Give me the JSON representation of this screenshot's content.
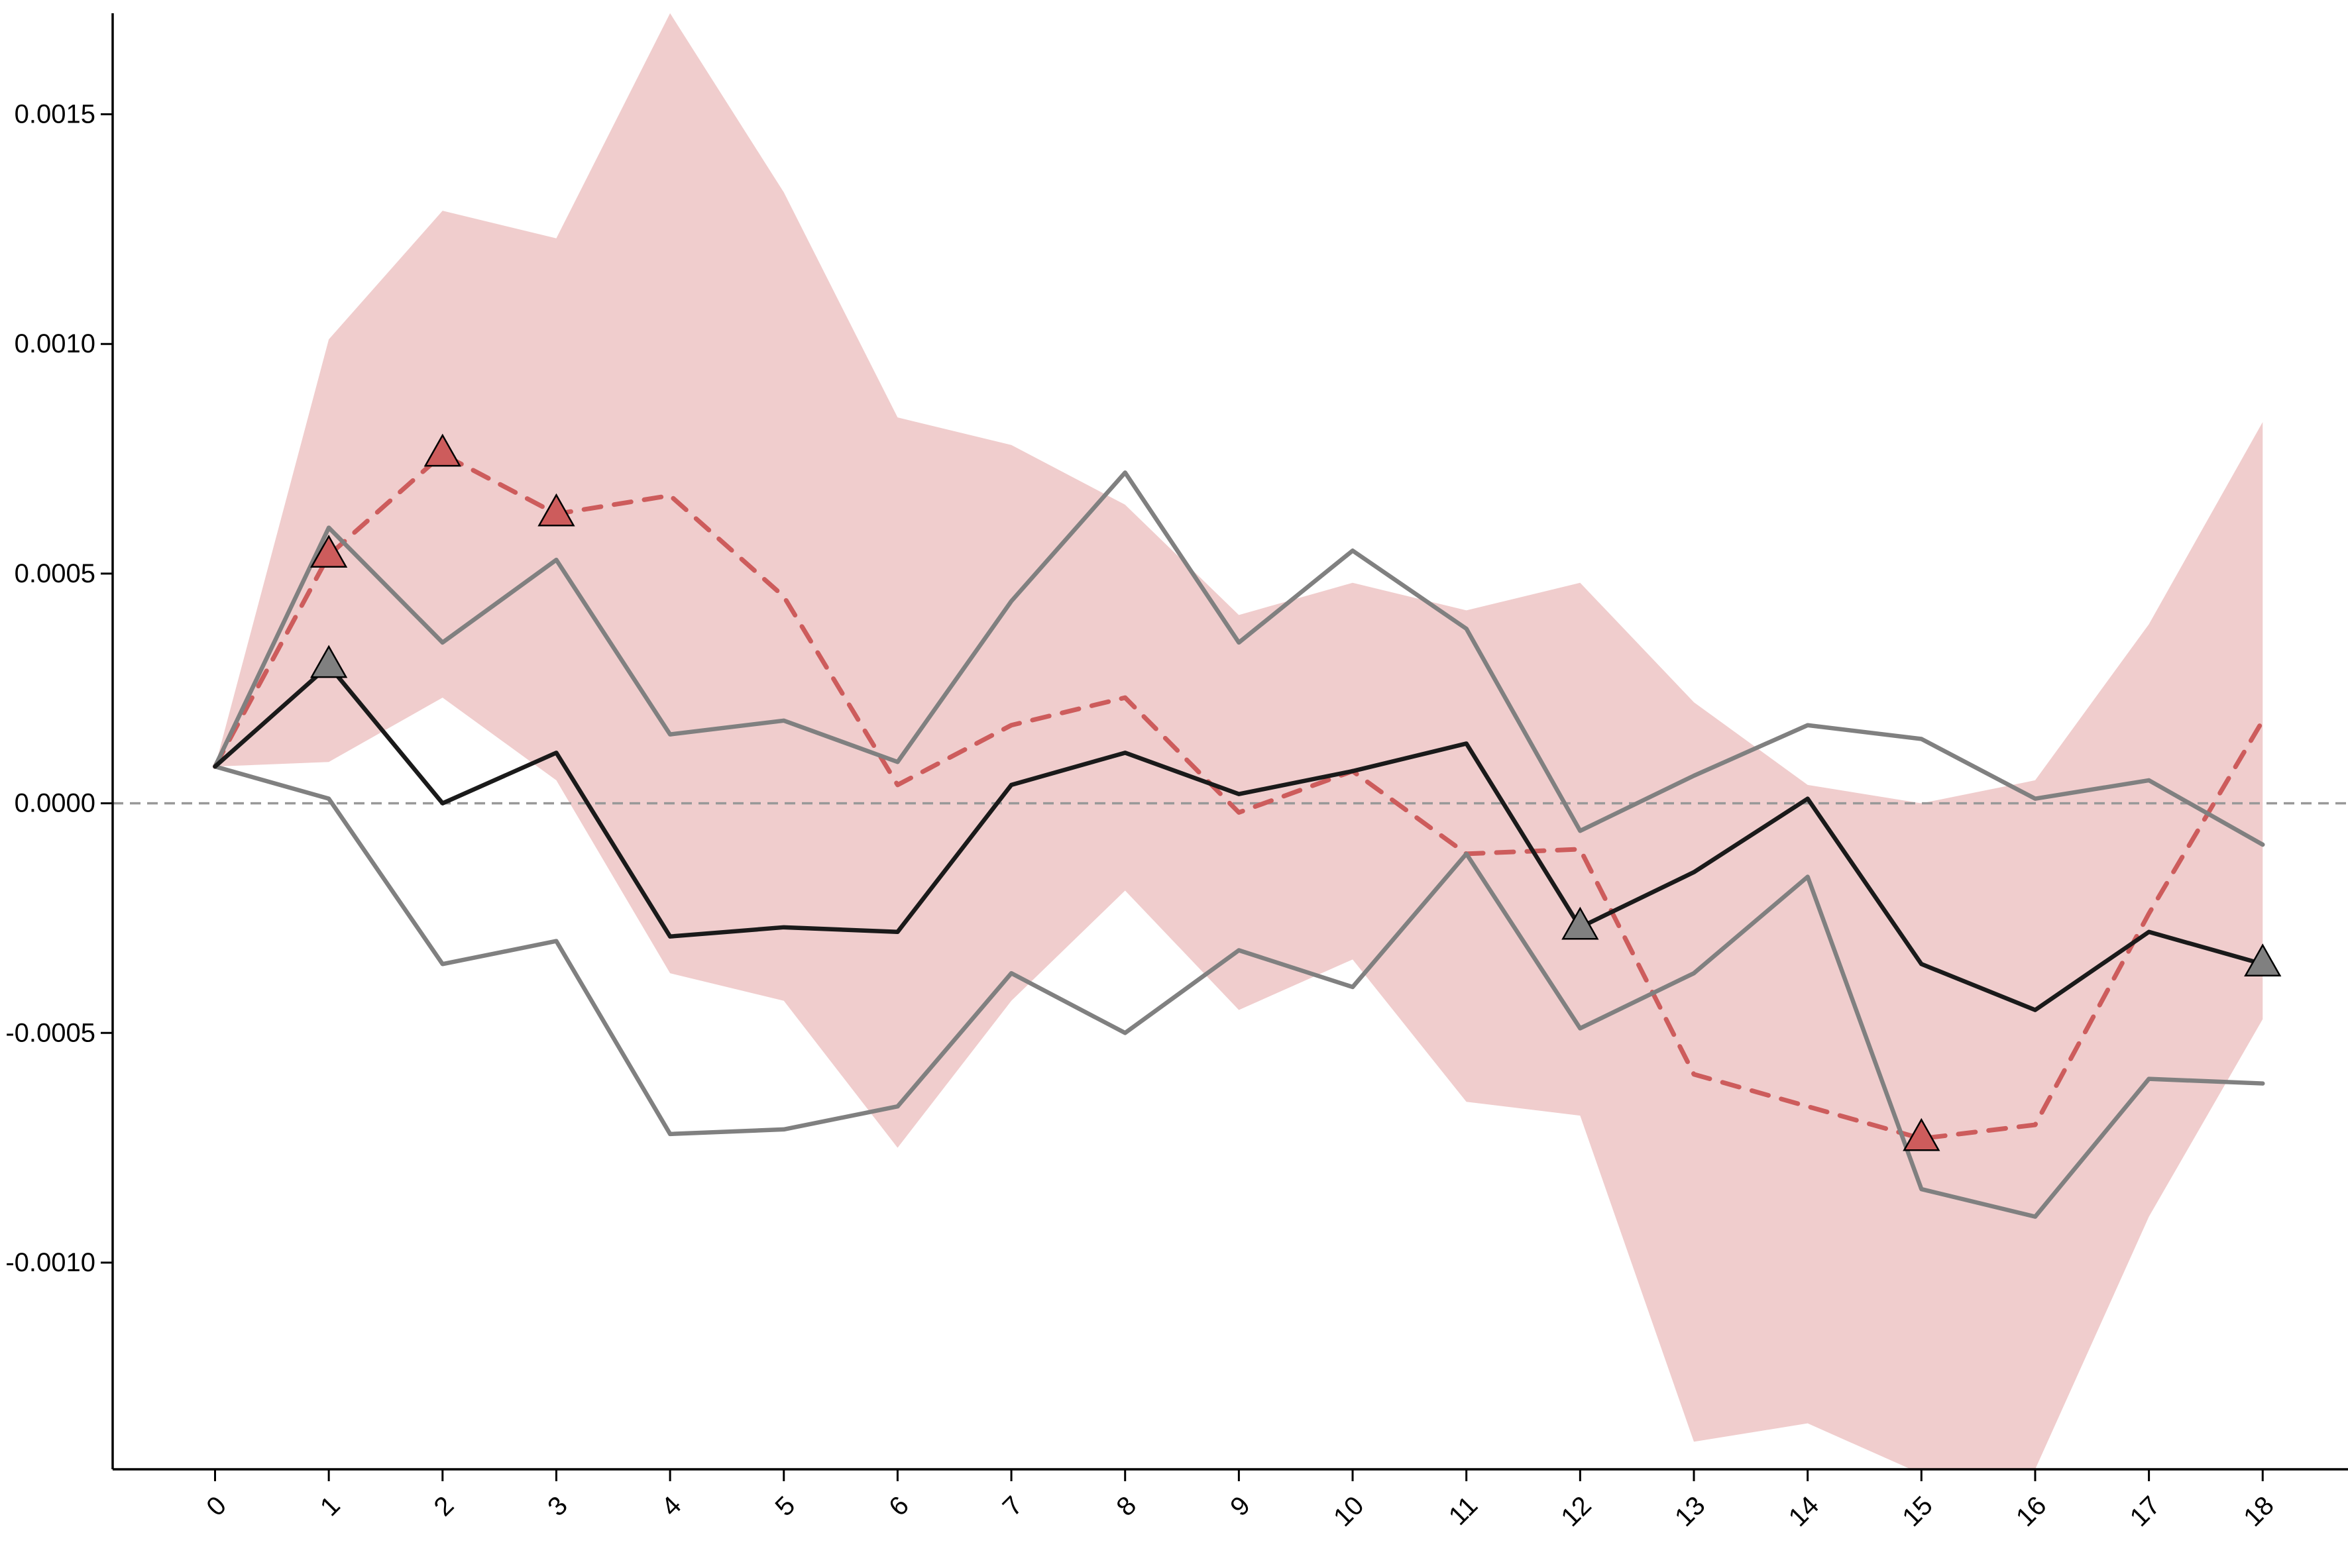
{
  "chart_data": {
    "type": "line",
    "title": "",
    "xlabel": "",
    "ylabel": "",
    "x": [
      0,
      1,
      2,
      3,
      4,
      5,
      6,
      7,
      8,
      9,
      10,
      11,
      12,
      13,
      14,
      15,
      16,
      17,
      18
    ],
    "x_tick_labels": [
      "0",
      "1",
      "2",
      "3",
      "4",
      "5",
      "6",
      "7",
      "8",
      "9",
      "10",
      "11",
      "12",
      "13",
      "14",
      "15",
      "16",
      "17",
      "18"
    ],
    "y_tick_values": [
      -0.001,
      -0.0005,
      0.0,
      0.0005,
      0.001,
      0.0015
    ],
    "y_tick_labels": [
      "-0.0010",
      "-0.0005",
      "0.0000",
      "0.0005",
      "0.0010",
      "0.0015"
    ],
    "xlim": [
      -0.9,
      18.75
    ],
    "ylim": [
      -0.00145,
      0.00172
    ],
    "grid": false,
    "reference_line_y": 0.0,
    "band": {
      "color": "#f0cdcd",
      "lower": [
        8e-05,
        9e-05,
        0.00023,
        5e-05,
        -0.00037,
        -0.00043,
        -0.00075,
        -0.00043,
        -0.00019,
        -0.00045,
        -0.00034,
        -0.00065,
        -0.00068,
        -0.00139,
        -0.00135,
        -0.00146,
        -0.00145,
        -0.0009,
        -0.00047
      ],
      "upper": [
        8e-05,
        0.00101,
        0.00129,
        0.00123,
        0.00172,
        0.00133,
        0.00084,
        0.00078,
        0.00065,
        0.00041,
        0.00048,
        0.00042,
        0.00048,
        0.00022,
        4e-05,
        0.0,
        5e-05,
        0.00039,
        0.00083
      ]
    },
    "series": [
      {
        "style": "dashed",
        "color": "#cd5c5c",
        "values": [
          8e-05,
          0.00054,
          0.00076,
          0.00063,
          0.00067,
          0.00045,
          4e-05,
          0.00017,
          0.00023,
          -2e-05,
          7e-05,
          -0.00011,
          -0.0001,
          -0.00059,
          -0.00066,
          -0.00073,
          -0.0007,
          -0.00024,
          0.00018
        ],
        "markers_at": [
          1,
          2,
          3,
          15
        ],
        "marker_fill": "#cd5c5c"
      },
      {
        "style": "solid",
        "color": "#808080",
        "values": [
          8e-05,
          0.0006,
          0.00035,
          0.00053,
          0.00015,
          0.00018,
          9e-05,
          0.00044,
          0.00072,
          0.00035,
          0.00055,
          0.00038,
          -6e-05,
          6e-05,
          0.00017,
          0.00014,
          1e-05,
          5e-05,
          -9e-05
        ]
      },
      {
        "style": "solid",
        "color": "#808080",
        "values": [
          8e-05,
          1e-05,
          -0.00035,
          -0.0003,
          -0.00072,
          -0.00071,
          -0.00066,
          -0.00037,
          -0.0005,
          -0.00032,
          -0.0004,
          -0.00011,
          -0.00049,
          -0.00037,
          -0.00016,
          -0.00084,
          -0.0009,
          -0.0006,
          -0.00061
        ]
      },
      {
        "style": "solid",
        "color": "#1a1a1a",
        "values": [
          8e-05,
          0.0003,
          0.0,
          0.00011,
          -0.00029,
          -0.00027,
          -0.00028,
          4e-05,
          0.00011,
          2e-05,
          7e-05,
          0.00013,
          -0.00027,
          -0.00015,
          1e-05,
          -0.00035,
          -0.00045,
          -0.00028,
          -0.00035
        ],
        "markers_at": [
          1,
          12,
          18
        ],
        "marker_fill": "#808080"
      }
    ],
    "colors": {
      "band": "#f0cdcd",
      "dashed_series": "#cd5c5c",
      "grey_series": "#808080",
      "main_series": "#1a1a1a",
      "reference_line": "#999999",
      "axis": "#000000"
    }
  }
}
